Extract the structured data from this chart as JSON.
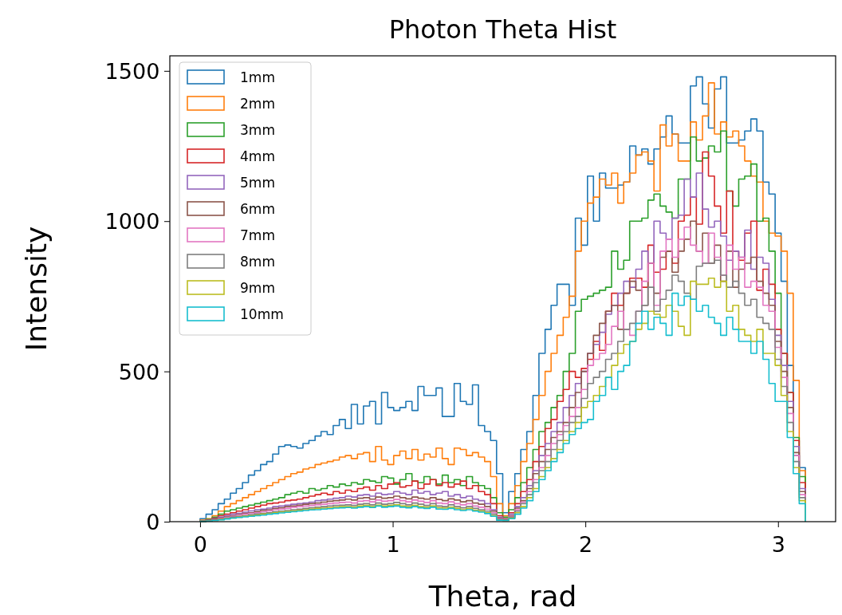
{
  "chart_data": {
    "type": "histogram",
    "title": "Photon Theta Hist",
    "xlabel": "Theta, rad",
    "ylabel": "Intensity",
    "xlim": [
      -0.157,
      3.299
    ],
    "ylim": [
      0,
      1550
    ],
    "xticks": [
      0,
      1,
      2,
      3
    ],
    "yticks": [
      0,
      500,
      1000,
      1500
    ],
    "grid": false,
    "legend": "top left",
    "bins": [
      0,
      0.031,
      0.063,
      0.094,
      0.126,
      0.157,
      0.188,
      0.22,
      0.251,
      0.283,
      0.314,
      0.346,
      0.377,
      0.408,
      0.44,
      0.471,
      0.503,
      0.534,
      0.565,
      0.597,
      0.628,
      0.66,
      0.691,
      0.723,
      0.754,
      0.785,
      0.817,
      0.848,
      0.88,
      0.911,
      0.942,
      0.974,
      1.005,
      1.037,
      1.068,
      1.1,
      1.131,
      1.162,
      1.194,
      1.225,
      1.257,
      1.288,
      1.319,
      1.351,
      1.382,
      1.414,
      1.445,
      1.477,
      1.508,
      1.539,
      1.571,
      1.602,
      1.634,
      1.665,
      1.696,
      1.728,
      1.759,
      1.791,
      1.822,
      1.853,
      1.885,
      1.916,
      1.948,
      1.979,
      2.011,
      2.042,
      2.073,
      2.105,
      2.136,
      2.168,
      2.199,
      2.23,
      2.262,
      2.293,
      2.325,
      2.356,
      2.388,
      2.419,
      2.45,
      2.482,
      2.513,
      2.545,
      2.576,
      2.608,
      2.639,
      2.67,
      2.702,
      2.733,
      2.765,
      2.796,
      2.827,
      2.859,
      2.89,
      2.922,
      2.953,
      2.985,
      3.016,
      3.048,
      3.079,
      3.11,
      3.142
    ],
    "series": [
      {
        "name": "1mm",
        "color": "#1f77b4",
        "values": [
          10,
          25,
          40,
          60,
          75,
          95,
          110,
          130,
          155,
          170,
          190,
          200,
          225,
          250,
          255,
          250,
          245,
          260,
          270,
          285,
          300,
          290,
          320,
          340,
          310,
          390,
          325,
          385,
          400,
          325,
          430,
          380,
          370,
          380,
          400,
          370,
          450,
          420,
          420,
          445,
          350,
          350,
          460,
          400,
          390,
          455,
          320,
          300,
          270,
          160,
          30,
          100,
          160,
          240,
          300,
          420,
          560,
          640,
          720,
          790,
          790,
          720,
          1010,
          920,
          1150,
          1000,
          1160,
          1110,
          1110,
          1120,
          1130,
          1250,
          1220,
          1240,
          1190,
          1240,
          1280,
          1350,
          1290,
          1260,
          1260,
          1450,
          1480,
          1390,
          1310,
          1440,
          1480,
          1260,
          1260,
          1270,
          1300,
          1340,
          1300,
          1130,
          1090,
          960,
          800,
          520,
          220,
          180
        ]
      },
      {
        "name": "2mm",
        "color": "#ff7f0e",
        "values": [
          5,
          10,
          20,
          35,
          50,
          60,
          70,
          80,
          90,
          100,
          110,
          120,
          130,
          140,
          150,
          160,
          165,
          175,
          180,
          190,
          195,
          200,
          205,
          215,
          220,
          210,
          225,
          230,
          200,
          250,
          205,
          190,
          220,
          235,
          210,
          240,
          205,
          225,
          215,
          245,
          210,
          190,
          245,
          240,
          220,
          230,
          215,
          200,
          150,
          60,
          20,
          60,
          120,
          200,
          260,
          340,
          420,
          500,
          560,
          620,
          680,
          750,
          900,
          1000,
          1060,
          1080,
          1140,
          1120,
          1160,
          1060,
          1130,
          1160,
          1220,
          1230,
          1200,
          1100,
          1320,
          1250,
          1290,
          1200,
          1200,
          1330,
          1270,
          1350,
          1460,
          1290,
          1330,
          1280,
          1300,
          1250,
          1200,
          1150,
          1130,
          1000,
          960,
          950,
          900,
          760,
          470,
          170
        ]
      },
      {
        "name": "3mm",
        "color": "#2ca02c",
        "values": [
          3,
          8,
          15,
          25,
          35,
          40,
          45,
          50,
          55,
          60,
          65,
          70,
          75,
          80,
          90,
          95,
          100,
          95,
          110,
          105,
          110,
          120,
          115,
          125,
          120,
          130,
          125,
          140,
          135,
          130,
          150,
          145,
          125,
          140,
          160,
          135,
          130,
          150,
          140,
          125,
          155,
          130,
          140,
          120,
          150,
          130,
          120,
          110,
          80,
          30,
          15,
          40,
          80,
          130,
          180,
          240,
          300,
          330,
          380,
          420,
          500,
          560,
          700,
          740,
          750,
          760,
          770,
          780,
          900,
          840,
          870,
          1000,
          1000,
          1010,
          1070,
          1090,
          1050,
          1030,
          1010,
          1140,
          1140,
          1280,
          1200,
          1210,
          1250,
          1230,
          1300,
          1100,
          1050,
          1140,
          1150,
          1190,
          1000,
          1010,
          900,
          760,
          560,
          430,
          280,
          150
        ]
      },
      {
        "name": "4mm",
        "color": "#d62728",
        "values": [
          2,
          6,
          12,
          20,
          25,
          30,
          35,
          40,
          45,
          50,
          55,
          60,
          62,
          65,
          70,
          72,
          75,
          80,
          85,
          90,
          95,
          90,
          100,
          95,
          105,
          100,
          110,
          115,
          105,
          120,
          110,
          125,
          130,
          115,
          120,
          135,
          110,
          125,
          140,
          120,
          130,
          115,
          125,
          135,
          110,
          120,
          100,
          90,
          60,
          20,
          10,
          30,
          60,
          100,
          140,
          200,
          250,
          310,
          340,
          400,
          440,
          500,
          480,
          510,
          540,
          600,
          570,
          700,
          760,
          720,
          760,
          810,
          810,
          780,
          920,
          830,
          840,
          900,
          860,
          1000,
          1020,
          1080,
          990,
          1230,
          1150,
          1050,
          960,
          1100,
          900,
          870,
          960,
          1000,
          770,
          840,
          790,
          640,
          560,
          430,
          270,
          130
        ]
      },
      {
        "name": "5mm",
        "color": "#9467bd",
        "values": [
          2,
          5,
          10,
          15,
          20,
          25,
          28,
          32,
          36,
          40,
          42,
          45,
          50,
          52,
          55,
          58,
          60,
          62,
          65,
          70,
          72,
          75,
          78,
          80,
          85,
          82,
          88,
          90,
          85,
          95,
          90,
          92,
          100,
          95,
          90,
          105,
          95,
          100,
          90,
          95,
          100,
          85,
          90,
          80,
          85,
          75,
          70,
          60,
          40,
          15,
          8,
          25,
          50,
          80,
          120,
          170,
          220,
          260,
          300,
          330,
          380,
          420,
          460,
          500,
          560,
          590,
          630,
          690,
          720,
          760,
          800,
          780,
          840,
          900,
          860,
          1000,
          960,
          940,
          1010,
          1020,
          1140,
          1080,
          1160,
          1040,
          980,
          1000,
          950,
          870,
          900,
          880,
          970,
          840,
          880,
          860,
          740,
          620,
          520,
          400,
          250,
          110
        ]
      },
      {
        "name": "6mm",
        "color": "#8c564b",
        "values": [
          2,
          4,
          8,
          12,
          16,
          20,
          24,
          28,
          30,
          34,
          38,
          40,
          44,
          46,
          50,
          52,
          55,
          58,
          60,
          62,
          65,
          68,
          70,
          72,
          75,
          72,
          78,
          80,
          75,
          82,
          78,
          80,
          85,
          80,
          76,
          82,
          78,
          75,
          80,
          74,
          70,
          76,
          72,
          66,
          70,
          62,
          58,
          50,
          35,
          12,
          6,
          20,
          45,
          70,
          110,
          160,
          200,
          240,
          280,
          300,
          330,
          380,
          430,
          500,
          560,
          620,
          660,
          700,
          720,
          640,
          760,
          800,
          770,
          720,
          860,
          760,
          880,
          900,
          830,
          900,
          940,
          1000,
          900,
          960,
          860,
          920,
          800,
          900,
          780,
          840,
          860,
          880,
          800,
          760,
          720,
          600,
          500,
          380,
          230,
          100
        ]
      },
      {
        "name": "7mm",
        "color": "#e377c2",
        "values": [
          1,
          3,
          6,
          10,
          14,
          18,
          22,
          25,
          28,
          30,
          33,
          36,
          40,
          42,
          44,
          48,
          50,
          52,
          54,
          56,
          58,
          60,
          62,
          64,
          65,
          62,
          68,
          70,
          66,
          72,
          68,
          70,
          74,
          70,
          66,
          72,
          68,
          64,
          70,
          62,
          60,
          66,
          60,
          56,
          60,
          52,
          48,
          42,
          30,
          10,
          5,
          18,
          40,
          65,
          100,
          140,
          180,
          220,
          260,
          290,
          320,
          350,
          380,
          440,
          520,
          540,
          560,
          590,
          650,
          700,
          640,
          620,
          700,
          800,
          860,
          720,
          900,
          940,
          880,
          940,
          980,
          920,
          900,
          860,
          960,
          880,
          820,
          920,
          840,
          880,
          780,
          800,
          780,
          720,
          700,
          580,
          480,
          360,
          220,
          90
        ]
      },
      {
        "name": "8mm",
        "color": "#7f7f7f",
        "values": [
          1,
          3,
          5,
          8,
          12,
          15,
          18,
          20,
          23,
          26,
          28,
          30,
          33,
          35,
          37,
          40,
          42,
          44,
          46,
          48,
          50,
          52,
          54,
          55,
          56,
          54,
          58,
          60,
          56,
          62,
          58,
          60,
          64,
          60,
          56,
          62,
          58,
          54,
          60,
          52,
          50,
          56,
          50,
          46,
          50,
          44,
          40,
          35,
          25,
          8,
          5,
          15,
          35,
          60,
          90,
          130,
          170,
          200,
          240,
          270,
          300,
          330,
          350,
          410,
          460,
          480,
          500,
          540,
          560,
          600,
          640,
          660,
          700,
          720,
          780,
          700,
          740,
          770,
          820,
          800,
          760,
          740,
          850,
          860,
          860,
          870,
          820,
          780,
          800,
          760,
          720,
          740,
          680,
          660,
          640,
          540,
          450,
          330,
          200,
          80
        ]
      },
      {
        "name": "9mm",
        "color": "#bcbd22",
        "values": [
          1,
          2,
          4,
          7,
          10,
          12,
          15,
          18,
          20,
          22,
          25,
          27,
          30,
          32,
          34,
          36,
          38,
          40,
          42,
          44,
          45,
          46,
          48,
          50,
          50,
          48,
          52,
          54,
          50,
          55,
          52,
          54,
          56,
          52,
          50,
          54,
          50,
          48,
          52,
          46,
          45,
          48,
          44,
          40,
          44,
          38,
          35,
          30,
          20,
          6,
          4,
          12,
          30,
          50,
          80,
          110,
          150,
          180,
          210,
          240,
          270,
          300,
          330,
          380,
          400,
          420,
          450,
          480,
          520,
          560,
          590,
          600,
          640,
          660,
          700,
          690,
          680,
          720,
          700,
          650,
          620,
          800,
          790,
          790,
          810,
          780,
          800,
          700,
          720,
          640,
          620,
          600,
          640,
          560,
          560,
          520,
          420,
          300,
          180,
          70
        ]
      },
      {
        "name": "10mm",
        "color": "#17becf",
        "values": [
          1,
          2,
          4,
          6,
          9,
          12,
          14,
          16,
          18,
          20,
          22,
          25,
          27,
          29,
          31,
          33,
          35,
          37,
          39,
          40,
          42,
          43,
          45,
          46,
          47,
          45,
          48,
          50,
          47,
          52,
          48,
          50,
          52,
          48,
          46,
          50,
          46,
          44,
          48,
          42,
          41,
          44,
          40,
          37,
          40,
          35,
          32,
          27,
          18,
          5,
          4,
          10,
          25,
          45,
          70,
          100,
          140,
          170,
          200,
          230,
          260,
          290,
          310,
          330,
          340,
          400,
          420,
          480,
          440,
          500,
          520,
          600,
          660,
          700,
          640,
          680,
          660,
          620,
          760,
          720,
          750,
          740,
          700,
          720,
          680,
          660,
          620,
          680,
          640,
          600,
          600,
          560,
          600,
          540,
          460,
          400,
          400,
          280,
          160,
          60
        ]
      }
    ]
  }
}
